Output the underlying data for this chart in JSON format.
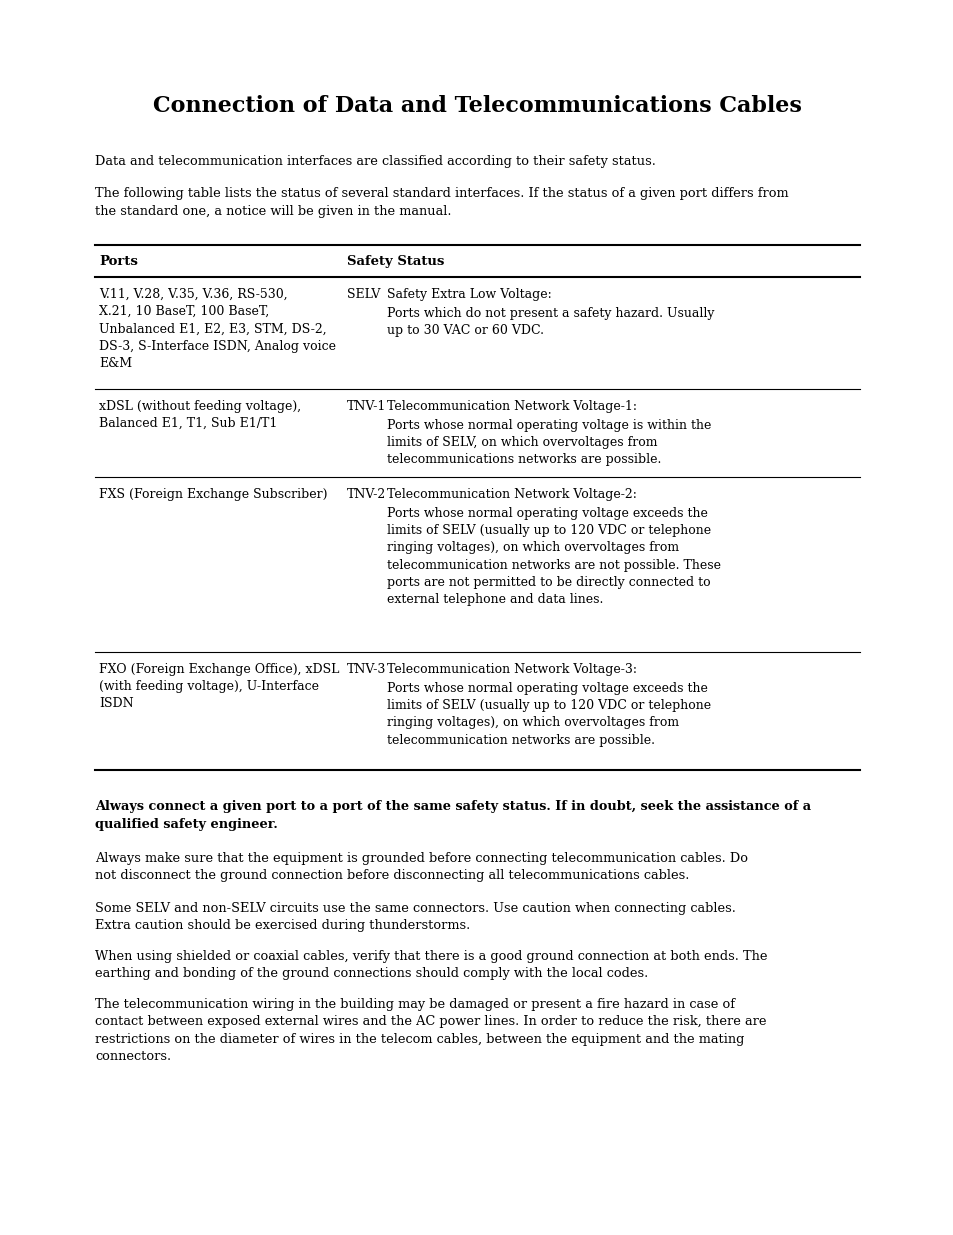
{
  "title": "Connection of Data and Telecommunications Cables",
  "intro1": "Data and telecommunication interfaces are classified according to their safety status.",
  "intro2": "The following table lists the status of several standard interfaces. If the status of a given port differs from the standard one, a notice will be given in the manual.",
  "table_header_col1": "Ports",
  "table_header_col2": "Safety Status",
  "table_rows": [
    {
      "port": "V.11, V.28, V.35, V.36, RS-530,\nX.21, 10 BaseT, 100 BaseT,\nUnbalanced E1, E2, E3, STM, DS-2,\nDS-3, S-Interface ISDN, Analog voice\nE&M",
      "code": "SELV",
      "status_title": "Safety Extra Low Voltage:",
      "status_desc": "Ports which do not present a safety hazard. Usually\nup to 30 VAC or 60 VDC."
    },
    {
      "port": "xDSL (without feeding voltage),\nBalanced E1, T1, Sub E1/T1",
      "code": "TNV-1",
      "status_title": "Telecommunication Network Voltage-1:",
      "status_desc": "Ports whose normal operating voltage is within the\nlimits of SELV, on which overvoltages from\ntelecommunications networks are possible."
    },
    {
      "port": "FXS (Foreign Exchange Subscriber)",
      "code": "TNV-2",
      "status_title": "Telecommunication Network Voltage-2:",
      "status_desc": "Ports whose normal operating voltage exceeds the\nlimits of SELV (usually up to 120 VDC or telephone\nringing voltages), on which overvoltages from\ntelecommunication networks are not possible. These\nports are not permitted to be directly connected to\nexternal telephone and data lines."
    },
    {
      "port": "FXO (Foreign Exchange Office), xDSL\n(with feeding voltage), U-Interface\nISDN",
      "code": "TNV-3",
      "status_title": "Telecommunication Network Voltage-3:",
      "status_desc": "Ports whose normal operating voltage exceeds the\nlimits of SELV (usually up to 120 VDC or telephone\nringing voltages), on which overvoltages from\ntelecommunication networks are possible."
    }
  ],
  "bold_warning": "Always connect a given port to a port of the same safety status. If in doubt, seek the assistance of a qualified safety engineer.",
  "para1": "Always make sure that the equipment is grounded before connecting telecommunication cables. Do not disconnect the ground connection before disconnecting all telecommunications cables.",
  "para2": "Some SELV and non-SELV circuits use the same connectors. Use caution when connecting cables. Extra caution should be exercised during thunderstorms.",
  "para3": "When using shielded or coaxial cables, verify that there is a good ground connection at both ends. The earthing and bonding of the ground connections should comply with the local codes.",
  "para4": "The telecommunication wiring in the building may be damaged or present a fire hazard in case of contact between exposed external wires and the AC power lines. In order to reduce the risk, there are restrictions on the diameter of wires in the telecom cables, between the equipment and the mating connectors.",
  "bg_color": "#ffffff",
  "text_color": "#000000"
}
